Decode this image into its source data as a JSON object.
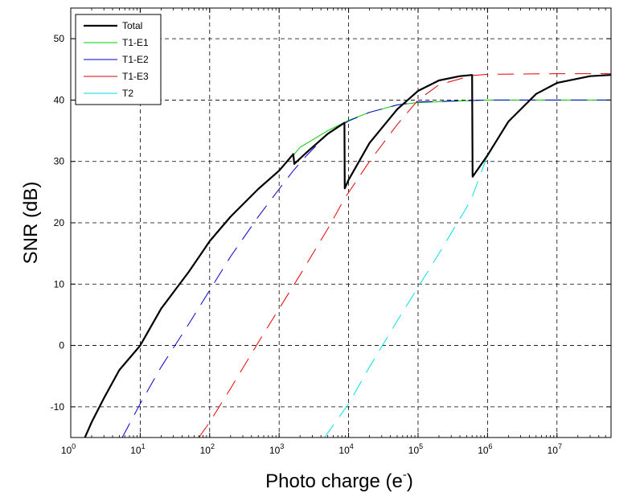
{
  "chart_data": {
    "type": "line",
    "title": "",
    "xlabel": "Photo charge (e",
    "xlabel_sup": "-",
    "xlabel_close": ")",
    "ylabel": "SNR (dB)",
    "xscale": "log",
    "xlim": [
      1,
      60000000
    ],
    "ylim": [
      -15,
      55
    ],
    "x_ticks": [
      1,
      10,
      100,
      1000,
      10000,
      100000,
      1000000,
      10000000
    ],
    "x_tick_labels": [
      {
        "base": "10",
        "exp": "0"
      },
      {
        "base": "10",
        "exp": "1"
      },
      {
        "base": "10",
        "exp": "2"
      },
      {
        "base": "10",
        "exp": "3"
      },
      {
        "base": "10",
        "exp": "4"
      },
      {
        "base": "10",
        "exp": "5"
      },
      {
        "base": "10",
        "exp": "6"
      },
      {
        "base": "10",
        "exp": "7"
      }
    ],
    "y_ticks": [
      -10,
      0,
      10,
      20,
      30,
      40,
      50
    ],
    "y_tick_labels": [
      "-10",
      "0",
      "10",
      "20",
      "30",
      "40",
      "50"
    ],
    "grid": true,
    "legend_position": "top-left",
    "series": [
      {
        "name": "Total",
        "color": "#000000",
        "style": "solid",
        "width": 2.2,
        "points": [
          [
            1.6,
            -15
          ],
          [
            2,
            -12.5
          ],
          [
            3,
            -8.6
          ],
          [
            5,
            -4
          ],
          [
            10,
            0
          ],
          [
            20,
            6
          ],
          [
            50,
            12
          ],
          [
            100,
            17
          ],
          [
            200,
            21
          ],
          [
            500,
            25.5
          ],
          [
            1000,
            28.5
          ],
          [
            1600,
            31.2
          ],
          [
            1650,
            29.6
          ],
          [
            2500,
            31.5
          ],
          [
            5000,
            34.5
          ],
          [
            8700,
            36.3
          ],
          [
            8800,
            25.6
          ],
          [
            10000,
            27
          ],
          [
            20000,
            33
          ],
          [
            50000,
            38.5
          ],
          [
            100000,
            41.5
          ],
          [
            200000,
            43.2
          ],
          [
            400000,
            43.9
          ],
          [
            600000,
            44.1
          ],
          [
            610000,
            27.5
          ],
          [
            1000000,
            31
          ],
          [
            2000000,
            36.5
          ],
          [
            5000000,
            41
          ],
          [
            10000000,
            42.8
          ],
          [
            30000000,
            43.9
          ],
          [
            60000000,
            44.1
          ]
        ]
      },
      {
        "name": "T1-E1",
        "color": "#00cc00",
        "style": "solid",
        "width": 1,
        "points": [
          [
            1600,
            31
          ],
          [
            2000,
            32.3
          ],
          [
            5000,
            35
          ],
          [
            10000,
            36.7
          ],
          [
            20000,
            38
          ],
          [
            50000,
            39.2
          ],
          [
            100000,
            39.6
          ],
          [
            500000,
            39.9
          ],
          [
            1000000,
            40
          ],
          [
            10000000,
            40
          ],
          [
            60000000,
            40
          ]
        ]
      },
      {
        "name": "T1-E2",
        "color": "#0000cc",
        "style": "dashed",
        "width": 1,
        "points": [
          [
            5.5,
            -15
          ],
          [
            10,
            -9.5
          ],
          [
            20,
            -3.5
          ],
          [
            50,
            3.5
          ],
          [
            100,
            9
          ],
          [
            200,
            14.5
          ],
          [
            500,
            21
          ],
          [
            1000,
            25.5
          ],
          [
            1600,
            28.5
          ],
          [
            2500,
            31
          ],
          [
            5000,
            34.5
          ],
          [
            10000,
            36.6
          ],
          [
            20000,
            38
          ],
          [
            50000,
            39.2
          ],
          [
            100000,
            39.7
          ],
          [
            500000,
            39.9
          ],
          [
            1000000,
            40
          ],
          [
            10000000,
            40
          ],
          [
            60000000,
            40
          ]
        ]
      },
      {
        "name": "T1-E3",
        "color": "#e60000",
        "style": "dashed",
        "width": 1,
        "points": [
          [
            70,
            -15
          ],
          [
            100,
            -12.5
          ],
          [
            200,
            -7
          ],
          [
            500,
            0.5
          ],
          [
            1000,
            6
          ],
          [
            2000,
            11.5
          ],
          [
            5000,
            19
          ],
          [
            8800,
            24
          ],
          [
            20000,
            30
          ],
          [
            50000,
            36
          ],
          [
            100000,
            40
          ],
          [
            200000,
            42.5
          ],
          [
            600000,
            44
          ],
          [
            1000000,
            44.2
          ],
          [
            10000000,
            44.3
          ],
          [
            60000000,
            44.3
          ]
        ]
      },
      {
        "name": "T2",
        "color": "#00e0e0",
        "style": "dashed",
        "width": 1,
        "points": [
          [
            4500,
            -15
          ],
          [
            10000,
            -9.5
          ],
          [
            20000,
            -3.5
          ],
          [
            50000,
            4
          ],
          [
            100000,
            9.5
          ],
          [
            200000,
            15
          ],
          [
            500000,
            22.5
          ],
          [
            600000,
            24.2
          ],
          [
            1000000,
            31
          ],
          [
            2000000,
            36.5
          ],
          [
            5000000,
            41
          ],
          [
            10000000,
            42.8
          ],
          [
            30000000,
            43.9
          ],
          [
            60000000,
            44.1
          ]
        ]
      }
    ]
  }
}
